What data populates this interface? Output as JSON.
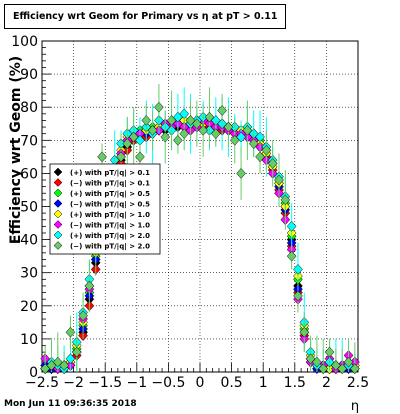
{
  "footer": {
    "timestamp": "Mon Jun 11 09:36:35 2018"
  },
  "chart_data": {
    "type": "scatter",
    "title": "Efficiency wrt Geom for Primary vs   η at pT > 0.11",
    "xlabel": "η",
    "ylabel": "Efficiency wrt Geom (%)",
    "xlim": [
      -2.5,
      2.5
    ],
    "ylim": [
      0,
      100
    ],
    "xticks": [
      "−2.5",
      "−2",
      "−1.5",
      "−1",
      "−0.5",
      "0",
      "0.5",
      "1",
      "1.5",
      "2",
      "2.5"
    ],
    "yticks": [
      "0",
      "10",
      "20",
      "30",
      "40",
      "50",
      "60",
      "70",
      "80",
      "90",
      "100"
    ],
    "grid": true,
    "legend_position": "left-middle",
    "series": [
      {
        "name": "(+) with pT/|q| > 0.1",
        "color": "#000000",
        "x": [
          -2.45,
          -2.35,
          -2.25,
          -2.15,
          -2.05,
          -1.95,
          -1.85,
          -1.75,
          -1.65,
          -1.55,
          -1.45,
          -1.35,
          -1.25,
          -1.15,
          -1.05,
          -0.95,
          -0.85,
          -0.75,
          -0.65,
          -0.55,
          -0.45,
          -0.35,
          -0.25,
          -0.15,
          -0.05,
          0.05,
          0.15,
          0.25,
          0.35,
          0.45,
          0.55,
          0.65,
          0.75,
          0.85,
          0.95,
          1.05,
          1.15,
          1.25,
          1.35,
          1.45,
          1.55,
          1.65,
          1.75,
          1.85,
          1.95,
          2.05,
          2.15,
          2.25,
          2.35,
          2.45
        ],
        "y": [
          2,
          1,
          1,
          2,
          3,
          6,
          12,
          22,
          33,
          42,
          50,
          58,
          64,
          68,
          70,
          71,
          72,
          72,
          73,
          73,
          74,
          74,
          74,
          74,
          75,
          75,
          75,
          74,
          74,
          73,
          73,
          72,
          72,
          71,
          69,
          66,
          62,
          57,
          50,
          40,
          26,
          12,
          4,
          2,
          1,
          1,
          1,
          2,
          2,
          3
        ]
      },
      {
        "name": "(−) with pT/|q| > 0.1",
        "color": "#ff0000",
        "x": [
          -2.45,
          -2.35,
          -2.25,
          -2.15,
          -2.05,
          -1.95,
          -1.85,
          -1.75,
          -1.65,
          -1.55,
          -1.45,
          -1.35,
          -1.25,
          -1.15,
          -1.05,
          -0.95,
          -0.85,
          -0.75,
          -0.65,
          -0.55,
          -0.45,
          -0.35,
          -0.25,
          -0.15,
          -0.05,
          0.05,
          0.15,
          0.25,
          0.35,
          0.45,
          0.55,
          0.65,
          0.75,
          0.85,
          0.95,
          1.05,
          1.15,
          1.25,
          1.35,
          1.45,
          1.55,
          1.65,
          1.75,
          1.85,
          1.95,
          2.05,
          2.15,
          2.25,
          2.35,
          2.45
        ],
        "y": [
          1,
          2,
          1,
          1,
          2,
          5,
          11,
          20,
          31,
          41,
          49,
          57,
          63,
          67,
          70,
          71,
          71,
          72,
          73,
          74,
          74,
          75,
          75,
          74,
          74,
          75,
          74,
          74,
          73,
          73,
          72,
          72,
          71,
          70,
          68,
          65,
          61,
          55,
          48,
          38,
          24,
          11,
          3,
          2,
          1,
          2,
          1,
          2,
          3,
          2
        ]
      },
      {
        "name": "(+) with pT/|q| > 0.5",
        "color": "#00ff00",
        "x": [
          -2.45,
          -2.35,
          -2.25,
          -2.15,
          -2.05,
          -1.95,
          -1.85,
          -1.75,
          -1.65,
          -1.55,
          -1.45,
          -1.35,
          -1.25,
          -1.15,
          -1.05,
          -0.95,
          -0.85,
          -0.75,
          -0.65,
          -0.55,
          -0.45,
          -0.35,
          -0.25,
          -0.15,
          -0.05,
          0.05,
          0.15,
          0.25,
          0.35,
          0.45,
          0.55,
          0.65,
          0.75,
          0.85,
          0.95,
          1.05,
          1.15,
          1.25,
          1.35,
          1.45,
          1.55,
          1.65,
          1.75,
          1.85,
          1.95,
          2.05,
          2.15,
          2.25,
          2.35,
          2.45
        ],
        "y": [
          1,
          1,
          2,
          2,
          3,
          7,
          14,
          24,
          35,
          44,
          52,
          60,
          66,
          70,
          72,
          73,
          73,
          74,
          74,
          75,
          75,
          76,
          76,
          75,
          75,
          76,
          76,
          75,
          75,
          74,
          74,
          73,
          73,
          72,
          70,
          67,
          63,
          58,
          51,
          41,
          28,
          13,
          4,
          2,
          1,
          1,
          2,
          1,
          2,
          1
        ]
      },
      {
        "name": "(−) with pT/|q| > 0.5",
        "color": "#0000ff",
        "x": [
          -2.45,
          -2.35,
          -2.25,
          -2.15,
          -2.05,
          -1.95,
          -1.85,
          -1.75,
          -1.65,
          -1.55,
          -1.45,
          -1.35,
          -1.25,
          -1.15,
          -1.05,
          -0.95,
          -0.85,
          -0.75,
          -0.65,
          -0.55,
          -0.45,
          -0.35,
          -0.25,
          -0.15,
          -0.05,
          0.05,
          0.15,
          0.25,
          0.35,
          0.45,
          0.55,
          0.65,
          0.75,
          0.85,
          0.95,
          1.05,
          1.15,
          1.25,
          1.35,
          1.45,
          1.55,
          1.65,
          1.75,
          1.85,
          1.95,
          2.05,
          2.15,
          2.25,
          2.35,
          2.45
        ],
        "y": [
          2,
          1,
          1,
          1,
          2,
          6,
          13,
          23,
          34,
          43,
          51,
          59,
          65,
          69,
          71,
          72,
          72,
          73,
          74,
          74,
          75,
          75,
          75,
          75,
          76,
          75,
          75,
          75,
          74,
          74,
          73,
          72,
          72,
          71,
          69,
          66,
          62,
          56,
          49,
          39,
          25,
          12,
          3,
          1,
          2,
          1,
          1,
          2,
          1,
          2
        ]
      },
      {
        "name": "(+) with pT/|q| > 1.0",
        "color": "#ffff00",
        "x": [
          -2.45,
          -2.35,
          -2.25,
          -2.15,
          -2.05,
          -1.95,
          -1.85,
          -1.75,
          -1.65,
          -1.55,
          -1.45,
          -1.35,
          -1.25,
          -1.15,
          -1.05,
          -0.95,
          -0.85,
          -0.75,
          -0.65,
          -0.55,
          -0.45,
          -0.35,
          -0.25,
          -0.15,
          -0.05,
          0.05,
          0.15,
          0.25,
          0.35,
          0.45,
          0.55,
          0.65,
          0.75,
          0.85,
          0.95,
          1.05,
          1.15,
          1.25,
          1.35,
          1.45,
          1.55,
          1.65,
          1.75,
          1.85,
          1.95,
          2.05,
          2.15,
          2.25,
          2.35,
          2.45
        ],
        "y": [
          1,
          2,
          2,
          1,
          3,
          8,
          15,
          26,
          36,
          45,
          53,
          61,
          67,
          71,
          72,
          72,
          73,
          73,
          74,
          74,
          75,
          75,
          76,
          76,
          76,
          75,
          75,
          74,
          74,
          74,
          73,
          73,
          72,
          71,
          69,
          66,
          62,
          57,
          50,
          42,
          29,
          14,
          5,
          2,
          1,
          1,
          1,
          1,
          2,
          2
        ]
      },
      {
        "name": "(−) with pT/|q| > 1.0",
        "color": "#ff00ff",
        "x": [
          -2.45,
          -2.35,
          -2.25,
          -2.15,
          -2.05,
          -1.95,
          -1.85,
          -1.75,
          -1.65,
          -1.55,
          -1.45,
          -1.35,
          -1.25,
          -1.15,
          -1.05,
          -0.95,
          -0.85,
          -0.75,
          -0.65,
          -0.55,
          -0.45,
          -0.35,
          -0.25,
          -0.15,
          -0.05,
          0.05,
          0.15,
          0.25,
          0.35,
          0.45,
          0.55,
          0.65,
          0.75,
          0.85,
          0.95,
          1.05,
          1.15,
          1.25,
          1.35,
          1.45,
          1.55,
          1.65,
          1.75,
          1.85,
          1.95,
          2.05,
          2.15,
          2.25,
          2.35,
          2.45
        ],
        "y": [
          4,
          2,
          1,
          2,
          2,
          6,
          16,
          25,
          37,
          46,
          52,
          60,
          66,
          70,
          71,
          72,
          74,
          73,
          73,
          75,
          74,
          75,
          74,
          73,
          74,
          76,
          75,
          74,
          74,
          73,
          72,
          72,
          71,
          70,
          68,
          64,
          60,
          54,
          46,
          37,
          22,
          10,
          3,
          2,
          2,
          4,
          1,
          2,
          5,
          3
        ]
      },
      {
        "name": "(+) with pT/|q| > 2.0",
        "color": "#00ffff",
        "x": [
          -2.45,
          -2.35,
          -2.25,
          -2.15,
          -2.05,
          -1.95,
          -1.85,
          -1.75,
          -1.65,
          -1.55,
          -1.45,
          -1.35,
          -1.25,
          -1.15,
          -1.05,
          -0.95,
          -0.85,
          -0.75,
          -0.65,
          -0.55,
          -0.45,
          -0.35,
          -0.25,
          -0.15,
          -0.05,
          0.05,
          0.15,
          0.25,
          0.35,
          0.45,
          0.55,
          0.65,
          0.75,
          0.85,
          0.95,
          1.05,
          1.15,
          1.25,
          1.35,
          1.45,
          1.55,
          1.65,
          1.75,
          1.85,
          1.95,
          2.05,
          2.15,
          2.25,
          2.35,
          2.45
        ],
        "y": [
          1,
          3,
          2,
          1,
          4,
          9,
          18,
          28,
          39,
          47,
          55,
          64,
          69,
          72,
          73,
          70,
          74,
          72,
          76,
          74,
          73,
          77,
          78,
          75,
          76,
          77,
          73,
          76,
          75,
          74,
          74,
          71,
          74,
          72,
          71,
          68,
          64,
          59,
          53,
          44,
          31,
          15,
          6,
          2,
          1,
          3,
          2,
          1,
          2,
          1
        ]
      },
      {
        "name": "(−) with pT/|q| > 2.0",
        "color": "#66cc66",
        "x": [
          -2.45,
          -2.35,
          -2.25,
          -2.15,
          -2.05,
          -1.95,
          -1.85,
          -1.75,
          -1.65,
          -1.55,
          -1.45,
          -1.35,
          -1.25,
          -1.15,
          -1.05,
          -0.95,
          -0.85,
          -0.75,
          -0.65,
          -0.55,
          -0.45,
          -0.35,
          -0.25,
          -0.15,
          -0.05,
          0.05,
          0.15,
          0.25,
          0.35,
          0.45,
          0.55,
          0.65,
          0.75,
          0.85,
          0.95,
          1.05,
          1.15,
          1.25,
          1.35,
          1.45,
          1.55,
          1.65,
          1.75,
          1.85,
          1.95,
          2.05,
          2.15,
          2.25,
          2.35,
          2.45
        ],
        "y": [
          1,
          2,
          3,
          2,
          12,
          6,
          17,
          26,
          38,
          65,
          51,
          59,
          65,
          69,
          71,
          65,
          76,
          73,
          80,
          71,
          76,
          70,
          72,
          76,
          75,
          73,
          77,
          72,
          79,
          74,
          70,
          60,
          73,
          69,
          65,
          67,
          63,
          58,
          52,
          35,
          23,
          12,
          4,
          3,
          1,
          6,
          2,
          1,
          3,
          1
        ]
      }
    ]
  }
}
